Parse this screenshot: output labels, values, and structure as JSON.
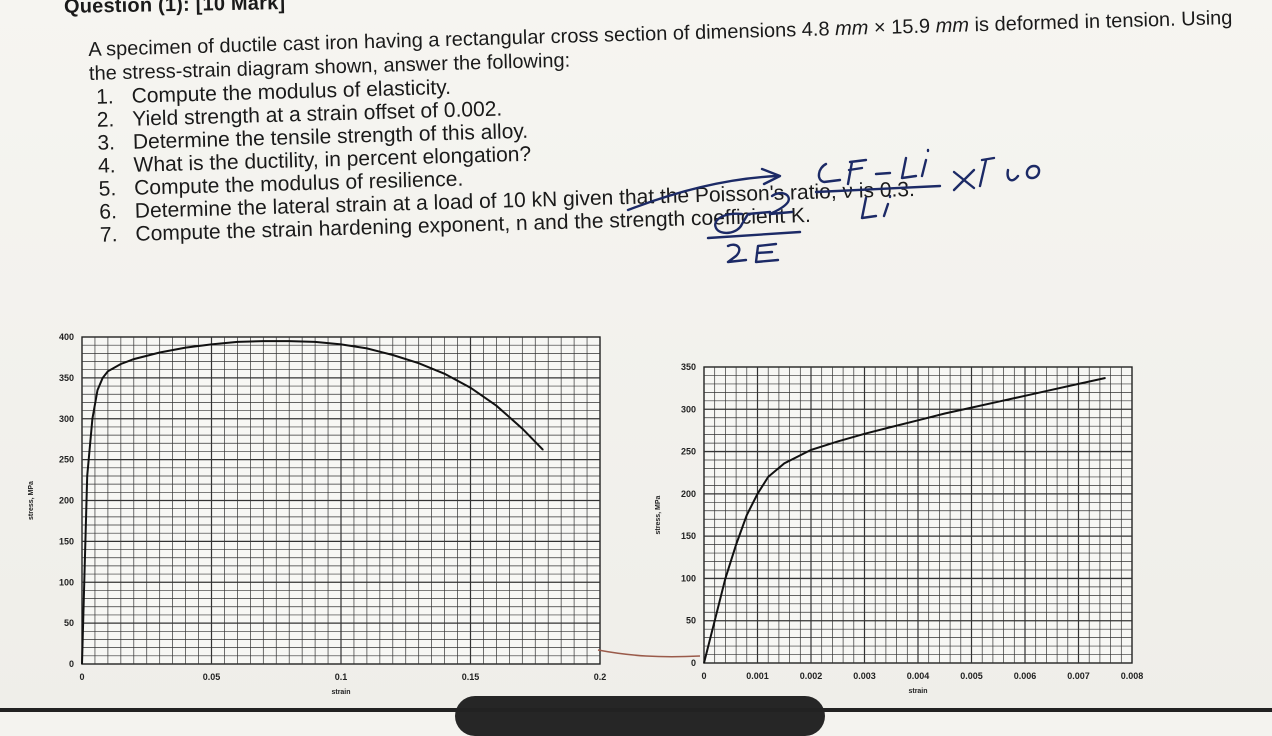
{
  "header": {
    "title": "Question (1): [10 Mark]"
  },
  "question": {
    "intro_part1": "A specimen of ductile cast iron having a rectangular cross section of dimensions 4.8 ",
    "intro_mm1": "mm",
    "intro_x": " × 15.9 ",
    "intro_mm2": "mm",
    "intro_part2": " is deformed in tension. Using the stress-strain diagram shown, answer the following:",
    "tasks": [
      {
        "num": "1.",
        "text": "Compute the modulus of elasticity."
      },
      {
        "num": "2.",
        "text": "Yield strength at a strain offset of 0.002."
      },
      {
        "num": "3.",
        "text": "Determine the tensile strength of this alloy."
      },
      {
        "num": "4.",
        "text": "What is the ductility, in percent elongation?"
      },
      {
        "num": "5.",
        "text": "Compute the modulus of resilience."
      },
      {
        "num": "6.",
        "text": "Determine the lateral strain at a load of 10 kN given that the Poisson's ratio, ν is 0.3."
      },
      {
        "num": "7.",
        "text": "Compute the strain hardening exponent, n and the strength coefficient K."
      }
    ]
  },
  "chart_data": [
    {
      "type": "line",
      "xlabel": "strain",
      "ylabel": "stress, MPa",
      "xlim": [
        0,
        0.2
      ],
      "ylim": [
        0,
        400
      ],
      "x_ticks": [
        "0",
        "0.05",
        "0.1",
        "0.15",
        "0.2"
      ],
      "y_ticks": [
        "0",
        "50",
        "100",
        "150",
        "200",
        "250",
        "300",
        "350",
        "400"
      ],
      "grid": true,
      "series": [
        {
          "x": [
            0,
            0.002,
            0.004,
            0.006,
            0.008,
            0.01,
            0.015,
            0.02,
            0.03,
            0.04,
            0.05,
            0.06,
            0.07,
            0.08,
            0.09,
            0.1,
            0.11,
            0.12,
            0.13,
            0.14,
            0.15,
            0.16,
            0.17,
            0.178
          ],
          "y": [
            0,
            230,
            300,
            335,
            350,
            358,
            367,
            373,
            381,
            387,
            391,
            394,
            395,
            395,
            394,
            391,
            386,
            378,
            368,
            355,
            338,
            316,
            288,
            262
          ]
        }
      ]
    },
    {
      "type": "line",
      "xlabel": "strain",
      "ylabel": "stress, MPa",
      "xlim": [
        0,
        0.008
      ],
      "ylim": [
        0,
        350
      ],
      "x_ticks": [
        "0",
        "0.001",
        "0.002",
        "0.003",
        "0.004",
        "0.005",
        "0.006",
        "0.007",
        "0.008"
      ],
      "y_ticks": [
        "0",
        "50",
        "100",
        "150",
        "200",
        "250",
        "300",
        "350"
      ],
      "grid": true,
      "series": [
        {
          "x": [
            0,
            0.0002,
            0.0004,
            0.0006,
            0.0008,
            0.001,
            0.0012,
            0.0015,
            0.002,
            0.0025,
            0.003,
            0.0035,
            0.004,
            0.0045,
            0.005,
            0.0055,
            0.006,
            0.0065,
            0.007,
            0.0075
          ],
          "y": [
            0,
            50,
            100,
            140,
            175,
            200,
            220,
            236,
            252,
            262,
            271,
            279,
            287,
            295,
            302,
            309,
            316,
            323,
            330,
            337
          ]
        }
      ]
    }
  ]
}
